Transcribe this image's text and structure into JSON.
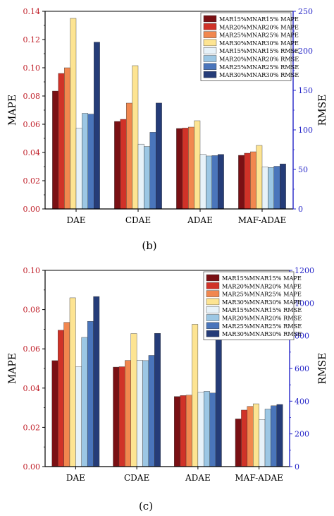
{
  "panels": [
    {
      "caption": "(b)",
      "chart_data": {
        "type": "bar",
        "xlabel": "",
        "ylabel": "MAPE",
        "y2label": "RMSE",
        "categories": [
          "DAE",
          "CDAE",
          "ADAE",
          "MAF-ADAE"
        ],
        "ylim": [
          0,
          0.14
        ],
        "yticks": [
          "0.00",
          "0.02",
          "0.04",
          "0.06",
          "0.08",
          "0.10",
          "0.12",
          "0.14"
        ],
        "y2lim": [
          0,
          250
        ],
        "y2ticks": [
          "0",
          "50",
          "100",
          "150",
          "200",
          "250"
        ],
        "legend_position": "top-right",
        "series": [
          {
            "name": "MAR15%MNAR15% MAPE",
            "axis": "left",
            "color": "#7a1014",
            "values": [
              0.0835,
              0.062,
              0.057,
              0.038
            ]
          },
          {
            "name": "MAR20%MNAR20% MAPE",
            "axis": "left",
            "color": "#d03228",
            "values": [
              0.096,
              0.0635,
              0.0573,
              0.0395
            ]
          },
          {
            "name": "MAR25%MNAR25% MAPE",
            "axis": "left",
            "color": "#f1874f",
            "values": [
              0.1,
              0.075,
              0.058,
              0.0405
            ]
          },
          {
            "name": "MAR30%MNAR30% MAPE",
            "axis": "left",
            "color": "#fde492",
            "values": [
              0.135,
              0.1015,
              0.0625,
              0.045
            ]
          },
          {
            "name": "MAR15%MNAR15% RMSE",
            "axis": "right",
            "color": "#e7f2f9",
            "values": [
              102,
              82,
              69,
              53
            ]
          },
          {
            "name": "MAR20%MNAR20% RMSE",
            "axis": "right",
            "color": "#9cc7e4",
            "values": [
              121,
              79,
              67,
              52.5
            ]
          },
          {
            "name": "MAR25%MNAR25% RMSE",
            "axis": "right",
            "color": "#4a75bb",
            "values": [
              120,
              97,
              67.5,
              54
            ]
          },
          {
            "name": "MAR30%MNAR30% RMSE",
            "axis": "right",
            "color": "#253c78",
            "values": [
              211,
              134,
              69,
              57
            ]
          }
        ]
      }
    },
    {
      "caption": "(c)",
      "chart_data": {
        "type": "bar",
        "xlabel": "",
        "ylabel": "MAPE",
        "y2label": "RMSE",
        "categories": [
          "DAE",
          "CDAE",
          "ADAE",
          "MAF-ADAE"
        ],
        "ylim": [
          0,
          0.1
        ],
        "yticks": [
          "0.00",
          "0.02",
          "0.04",
          "0.06",
          "0.08",
          "0.10"
        ],
        "y2lim": [
          0,
          1200
        ],
        "y2ticks": [
          "0",
          "200",
          "400",
          "600",
          "800",
          "1000",
          "1200"
        ],
        "legend_position": "top-right",
        "series": [
          {
            "name": "MAR15%MNAR15% MAPE",
            "axis": "left",
            "color": "#7a1014",
            "values": [
              0.054,
              0.0507,
              0.0357,
              0.0243
            ]
          },
          {
            "name": "MAR20%MNAR20% MAPE",
            "axis": "left",
            "color": "#d03228",
            "values": [
              0.0695,
              0.0509,
              0.0362,
              0.0288
            ]
          },
          {
            "name": "MAR25%MNAR25% MAPE",
            "axis": "left",
            "color": "#f1874f",
            "values": [
              0.0735,
              0.0541,
              0.0364,
              0.0307
            ]
          },
          {
            "name": "MAR30%MNAR30% MAPE",
            "axis": "left",
            "color": "#fde492",
            "values": [
              0.086,
              0.0678,
              0.0725,
              0.032
            ]
          },
          {
            "name": "MAR15%MNAR15% RMSE",
            "axis": "right",
            "color": "#e7f2f9",
            "values": [
              610,
              650,
              455,
              288
            ]
          },
          {
            "name": "MAR20%MNAR20% RMSE",
            "axis": "right",
            "color": "#9cc7e4",
            "values": [
              790,
              648,
              460,
              352
            ]
          },
          {
            "name": "MAR25%MNAR25% RMSE",
            "axis": "right",
            "color": "#4a75bb",
            "values": [
              888,
              680,
              450,
              372
            ]
          },
          {
            "name": "MAR30%MNAR30% RMSE",
            "axis": "right",
            "color": "#253c78",
            "values": [
              1040,
              815,
              785,
              380
            ]
          }
        ]
      }
    }
  ]
}
